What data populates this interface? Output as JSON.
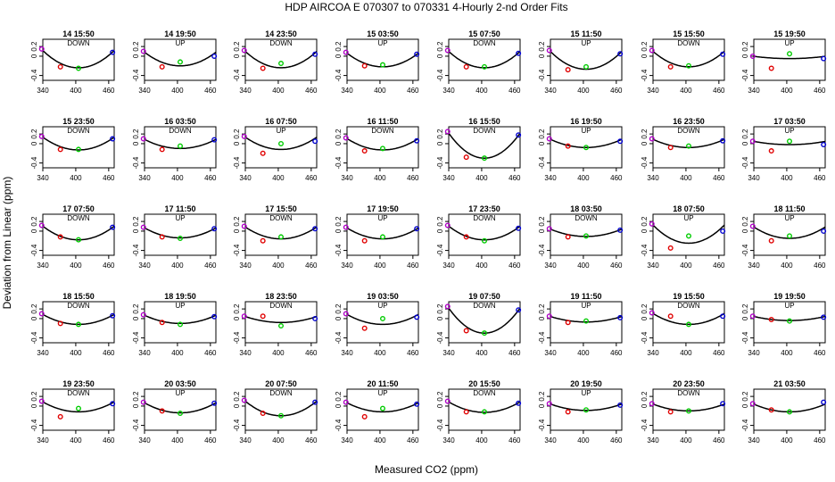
{
  "figure": {
    "title": "HDP    AIRCOA E    070307 to 070331    4-Hourly 2-nd Order Fits",
    "xlabel": "Measured CO2 (ppm)",
    "ylabel": "Deviation from Linear (ppm)"
  },
  "chart_data": {
    "type": "scatter",
    "layout": {
      "rows": 5,
      "cols": 8
    },
    "xlim": [
      340,
      470
    ],
    "ylim": [
      -0.5,
      0.35
    ],
    "x_ticks": [
      340,
      400,
      460
    ],
    "y_ticks": [
      -0.4,
      0,
      0.2
    ],
    "x_tick_labels": [
      "340",
      "400",
      "460"
    ],
    "y_tick_labels": [
      "-0.4",
      "0",
      "0.2"
    ],
    "grid": false,
    "point_x": [
      338,
      372,
      405,
      467
    ],
    "point_colors": [
      "#b000c8",
      "#e00000",
      "#00cc00",
      "#0000d0"
    ],
    "curve_color": "#000000",
    "panels": [
      {
        "title": "14 15:50",
        "dir": "DOWN",
        "y": [
          0.15,
          -0.22,
          -0.25,
          0.08
        ],
        "fit": [
          0.14,
          -0.24
        ]
      },
      {
        "title": "14 19:50",
        "dir": "UP",
        "y": [
          0.1,
          -0.22,
          -0.12,
          0.0
        ],
        "fit": [
          0.1,
          -0.2
        ]
      },
      {
        "title": "14 23:50",
        "dir": "DOWN",
        "y": [
          0.12,
          -0.25,
          -0.15,
          0.04
        ],
        "fit": [
          0.12,
          -0.24
        ]
      },
      {
        "title": "15 03:50",
        "dir": "UP",
        "y": [
          0.08,
          -0.2,
          -0.18,
          0.04
        ],
        "fit": [
          0.08,
          -0.22
        ]
      },
      {
        "title": "15 07:50",
        "dir": "DOWN",
        "y": [
          0.12,
          -0.22,
          -0.22,
          0.06
        ],
        "fit": [
          0.12,
          -0.24
        ]
      },
      {
        "title": "15 11:50",
        "dir": "UP",
        "y": [
          0.12,
          -0.28,
          -0.22,
          0.05
        ],
        "fit": [
          0.12,
          -0.27
        ]
      },
      {
        "title": "15 15:50",
        "dir": "DOWN",
        "y": [
          0.12,
          -0.22,
          -0.2,
          0.04
        ],
        "fit": [
          0.12,
          -0.22
        ]
      },
      {
        "title": "15 19:50",
        "dir": "UP",
        "y": [
          0.0,
          -0.25,
          0.05,
          -0.05
        ],
        "fit": [
          0.0,
          -0.05
        ]
      },
      {
        "title": "15 23:50",
        "dir": "DOWN",
        "y": [
          0.15,
          -0.12,
          -0.12,
          0.1
        ],
        "fit": [
          0.15,
          -0.13
        ]
      },
      {
        "title": "16 03:50",
        "dir": "DOWN",
        "y": [
          0.1,
          -0.12,
          -0.05,
          0.08
        ],
        "fit": [
          0.1,
          -0.1
        ]
      },
      {
        "title": "16 07:50",
        "dir": "UP",
        "y": [
          0.15,
          -0.2,
          0.0,
          0.05
        ],
        "fit": [
          0.15,
          -0.12
        ]
      },
      {
        "title": "16 11:50",
        "dir": "DOWN",
        "y": [
          0.12,
          -0.15,
          -0.1,
          0.06
        ],
        "fit": [
          0.12,
          -0.13
        ]
      },
      {
        "title": "16 15:50",
        "dir": "DOWN",
        "y": [
          0.25,
          -0.28,
          -0.3,
          0.18
        ],
        "fit": [
          0.25,
          -0.3
        ]
      },
      {
        "title": "16 19:50",
        "dir": "UP",
        "y": [
          0.1,
          -0.05,
          -0.08,
          0.05
        ],
        "fit": [
          0.1,
          -0.08
        ]
      },
      {
        "title": "16 23:50",
        "dir": "DOWN",
        "y": [
          0.1,
          -0.08,
          -0.05,
          0.06
        ],
        "fit": [
          0.1,
          -0.08
        ]
      },
      {
        "title": "17 03:50",
        "dir": "UP",
        "y": [
          0.05,
          -0.15,
          0.05,
          -0.02
        ],
        "fit": [
          0.05,
          -0.02
        ]
      },
      {
        "title": "17 07:50",
        "dir": "DOWN",
        "y": [
          0.12,
          -0.12,
          -0.18,
          0.08
        ],
        "fit": [
          0.12,
          -0.18
        ]
      },
      {
        "title": "17 11:50",
        "dir": "UP",
        "y": [
          0.08,
          -0.12,
          -0.15,
          0.05
        ],
        "fit": [
          0.08,
          -0.14
        ]
      },
      {
        "title": "17 15:50",
        "dir": "DOWN",
        "y": [
          0.1,
          -0.2,
          -0.12,
          0.05
        ],
        "fit": [
          0.1,
          -0.16
        ]
      },
      {
        "title": "17 19:50",
        "dir": "UP",
        "y": [
          0.08,
          -0.2,
          -0.12,
          0.05
        ],
        "fit": [
          0.08,
          -0.16
        ]
      },
      {
        "title": "17 23:50",
        "dir": "DOWN",
        "y": [
          0.12,
          -0.12,
          -0.2,
          0.06
        ],
        "fit": [
          0.12,
          -0.18
        ]
      },
      {
        "title": "18 03:50",
        "dir": "DOWN",
        "y": [
          0.05,
          -0.12,
          -0.1,
          0.02
        ],
        "fit": [
          0.05,
          -0.11
        ]
      },
      {
        "title": "18 07:50",
        "dir": "UP",
        "y": [
          0.15,
          -0.35,
          -0.1,
          0.0
        ],
        "fit": [
          0.15,
          -0.25
        ]
      },
      {
        "title": "18 11:50",
        "dir": "UP",
        "y": [
          0.1,
          -0.2,
          -0.1,
          0.0
        ],
        "fit": [
          0.1,
          -0.15
        ]
      },
      {
        "title": "18 15:50",
        "dir": "DOWN",
        "y": [
          0.1,
          -0.1,
          -0.12,
          0.06
        ],
        "fit": [
          0.1,
          -0.12
        ]
      },
      {
        "title": "18 19:50",
        "dir": "UP",
        "y": [
          0.08,
          -0.08,
          -0.12,
          0.04
        ],
        "fit": [
          0.08,
          -0.1
        ]
      },
      {
        "title": "18 23:50",
        "dir": "DOWN",
        "y": [
          0.05,
          0.05,
          -0.15,
          0.0
        ],
        "fit": [
          0.05,
          -0.08
        ]
      },
      {
        "title": "19 03:50",
        "dir": "UP",
        "y": [
          0.1,
          -0.2,
          0.0,
          0.03
        ],
        "fit": [
          0.1,
          -0.12
        ]
      },
      {
        "title": "19 07:50",
        "dir": "DOWN",
        "y": [
          0.25,
          -0.25,
          -0.3,
          0.18
        ],
        "fit": [
          0.25,
          -0.3
        ]
      },
      {
        "title": "19 11:50",
        "dir": "UP",
        "y": [
          0.05,
          -0.08,
          -0.05,
          0.02
        ],
        "fit": [
          0.05,
          -0.07
        ]
      },
      {
        "title": "19 15:50",
        "dir": "DOWN",
        "y": [
          0.12,
          0.05,
          -0.12,
          0.05
        ],
        "fit": [
          0.12,
          -0.12
        ]
      },
      {
        "title": "19 19:50",
        "dir": "UP",
        "y": [
          0.05,
          -0.02,
          -0.05,
          0.03
        ],
        "fit": [
          0.05,
          -0.04
        ]
      },
      {
        "title": "19 23:50",
        "dir": "DOWN",
        "y": [
          0.1,
          -0.22,
          -0.05,
          0.05
        ],
        "fit": [
          0.1,
          -0.12
        ]
      },
      {
        "title": "20 03:50",
        "dir": "UP",
        "y": [
          0.08,
          -0.1,
          -0.15,
          0.06
        ],
        "fit": [
          0.08,
          -0.14
        ]
      },
      {
        "title": "20 07:50",
        "dir": "DOWN",
        "y": [
          0.12,
          -0.15,
          -0.2,
          0.08
        ],
        "fit": [
          0.12,
          -0.2
        ]
      },
      {
        "title": "20 11:50",
        "dir": "UP",
        "y": [
          0.08,
          -0.22,
          -0.05,
          0.04
        ],
        "fit": [
          0.08,
          -0.12
        ]
      },
      {
        "title": "20 15:50",
        "dir": "DOWN",
        "y": [
          0.1,
          -0.12,
          -0.12,
          0.06
        ],
        "fit": [
          0.1,
          -0.13
        ]
      },
      {
        "title": "20 19:50",
        "dir": "UP",
        "y": [
          0.05,
          -0.12,
          -0.08,
          0.02
        ],
        "fit": [
          0.05,
          -0.09
        ]
      },
      {
        "title": "20 23:50",
        "dir": "DOWN",
        "y": [
          0.05,
          -0.12,
          -0.1,
          0.05
        ],
        "fit": [
          0.05,
          -0.1
        ]
      },
      {
        "title": "21 03:50",
        "dir": "",
        "y": [
          0.05,
          -0.08,
          -0.12,
          0.08
        ],
        "fit": [
          0.05,
          -0.12
        ]
      }
    ]
  }
}
